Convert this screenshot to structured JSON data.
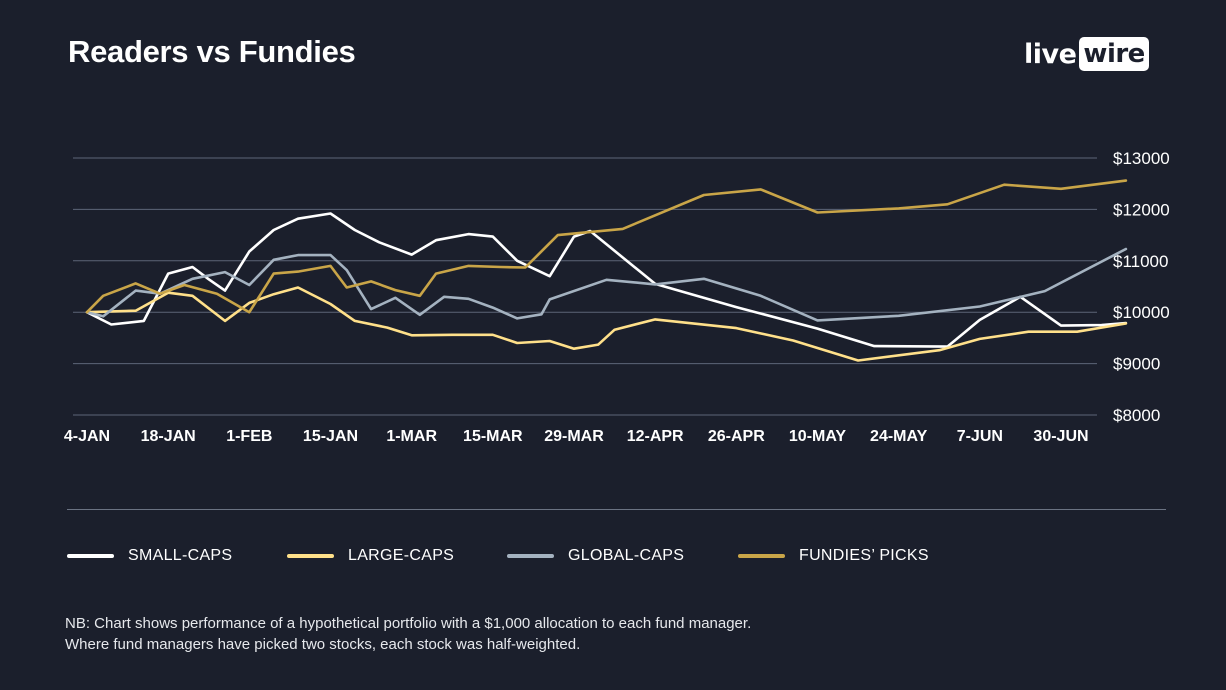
{
  "header": {
    "title": "Readers vs Fundies",
    "logo_live": "live",
    "logo_wire": "wire"
  },
  "colors": {
    "background": "#1b1f2c",
    "grid": "#5d6577"
  },
  "chart_data": {
    "type": "line",
    "title": "Readers vs Fundies",
    "xlabel": "",
    "ylabel": "",
    "ylim": [
      8000,
      13000
    ],
    "y_ticks": [
      "$13000",
      "$12000",
      "$11000",
      "$10000",
      "$9000",
      "$8000"
    ],
    "y_tick_values": [
      13000,
      12000,
      11000,
      10000,
      9000,
      8000
    ],
    "x_tick_labels": [
      "4-JAN",
      "18-JAN",
      "1-FEB",
      "15-JAN",
      "1-MAR",
      "15-MAR",
      "29-MAR",
      "12-APR",
      "26-APR",
      "10-MAY",
      "24-MAY",
      "7-JUN",
      "30-JUN"
    ],
    "grid": true,
    "legend_position": "bottom",
    "series": [
      {
        "name": "SMALL-CAPS",
        "color": "#ffffff",
        "points": [
          [
            0,
            10000
          ],
          [
            0.3,
            9760
          ],
          [
            0.7,
            9830
          ],
          [
            1,
            10750
          ],
          [
            1.3,
            10880
          ],
          [
            1.5,
            10640
          ],
          [
            1.7,
            10420
          ],
          [
            2,
            11180
          ],
          [
            2.3,
            11600
          ],
          [
            2.6,
            11820
          ],
          [
            3,
            11920
          ],
          [
            3.3,
            11600
          ],
          [
            3.6,
            11360
          ],
          [
            4,
            11120
          ],
          [
            4.3,
            11400
          ],
          [
            4.7,
            11520
          ],
          [
            5,
            11470
          ],
          [
            5.3,
            11000
          ],
          [
            5.7,
            10700
          ],
          [
            6,
            11470
          ],
          [
            6.2,
            11580
          ],
          [
            7,
            10550
          ],
          [
            8,
            10100
          ],
          [
            9,
            9680
          ],
          [
            9.7,
            9340
          ],
          [
            10.6,
            9330
          ],
          [
            11,
            9850
          ],
          [
            11.5,
            10300
          ],
          [
            12,
            9740
          ],
          [
            12.5,
            9750
          ],
          [
            12.8,
            9790
          ]
        ]
      },
      {
        "name": "LARGE-CAPS",
        "color": "#ffe08a",
        "points": [
          [
            0,
            10000
          ],
          [
            0.6,
            10030
          ],
          [
            1,
            10380
          ],
          [
            1.3,
            10320
          ],
          [
            1.7,
            9830
          ],
          [
            2,
            10180
          ],
          [
            2.3,
            10350
          ],
          [
            2.6,
            10480
          ],
          [
            3,
            10160
          ],
          [
            3.3,
            9830
          ],
          [
            3.7,
            9700
          ],
          [
            4,
            9550
          ],
          [
            4.5,
            9560
          ],
          [
            5,
            9560
          ],
          [
            5.3,
            9400
          ],
          [
            5.7,
            9440
          ],
          [
            6,
            9290
          ],
          [
            6.3,
            9370
          ],
          [
            6.5,
            9660
          ],
          [
            7,
            9860
          ],
          [
            8,
            9690
          ],
          [
            8.7,
            9450
          ],
          [
            9.5,
            9060
          ],
          [
            10.5,
            9260
          ],
          [
            11,
            9480
          ],
          [
            11.6,
            9620
          ],
          [
            12.2,
            9620
          ],
          [
            12.8,
            9780
          ]
        ]
      },
      {
        "name": "GLOBAL-CAPS",
        "color": "#a4b2c0",
        "points": [
          [
            0,
            10000
          ],
          [
            0.2,
            9920
          ],
          [
            0.6,
            10420
          ],
          [
            0.9,
            10360
          ],
          [
            1.3,
            10650
          ],
          [
            1.7,
            10780
          ],
          [
            2,
            10530
          ],
          [
            2.3,
            11020
          ],
          [
            2.6,
            11110
          ],
          [
            3,
            11110
          ],
          [
            3.2,
            10820
          ],
          [
            3.5,
            10060
          ],
          [
            3.8,
            10280
          ],
          [
            4.1,
            9950
          ],
          [
            4.4,
            10300
          ],
          [
            4.7,
            10260
          ],
          [
            5,
            10090
          ],
          [
            5.3,
            9880
          ],
          [
            5.6,
            9960
          ],
          [
            5.7,
            10250
          ],
          [
            6.4,
            10630
          ],
          [
            7,
            10540
          ],
          [
            7.6,
            10650
          ],
          [
            8.3,
            10320
          ],
          [
            9,
            9840
          ],
          [
            10,
            9930
          ],
          [
            11,
            10110
          ],
          [
            11.8,
            10410
          ],
          [
            12.8,
            11230
          ]
        ]
      },
      {
        "name": "FUNDIES' PICKS",
        "color": "#c9a548",
        "points": [
          [
            0,
            10000
          ],
          [
            0.2,
            10320
          ],
          [
            0.6,
            10560
          ],
          [
            0.9,
            10360
          ],
          [
            1.2,
            10530
          ],
          [
            1.6,
            10360
          ],
          [
            2,
            10000
          ],
          [
            2.3,
            10750
          ],
          [
            2.6,
            10790
          ],
          [
            3,
            10900
          ],
          [
            3.2,
            10480
          ],
          [
            3.5,
            10600
          ],
          [
            3.8,
            10430
          ],
          [
            4.1,
            10320
          ],
          [
            4.3,
            10750
          ],
          [
            4.7,
            10900
          ],
          [
            5.1,
            10880
          ],
          [
            5.4,
            10870
          ],
          [
            5.8,
            11500
          ],
          [
            6.6,
            11620
          ],
          [
            7.6,
            12280
          ],
          [
            8.3,
            12390
          ],
          [
            9,
            11940
          ],
          [
            10,
            12020
          ],
          [
            10.6,
            12100
          ],
          [
            11.3,
            12480
          ],
          [
            12,
            12400
          ],
          [
            12.8,
            12560
          ]
        ]
      }
    ]
  },
  "note": {
    "line1": "NB: Chart shows performance of a hypothetical portfolio with a $1,000 allocation to each fund manager.",
    "line2": "Where fund managers have picked two stocks, each stock was half-weighted."
  }
}
